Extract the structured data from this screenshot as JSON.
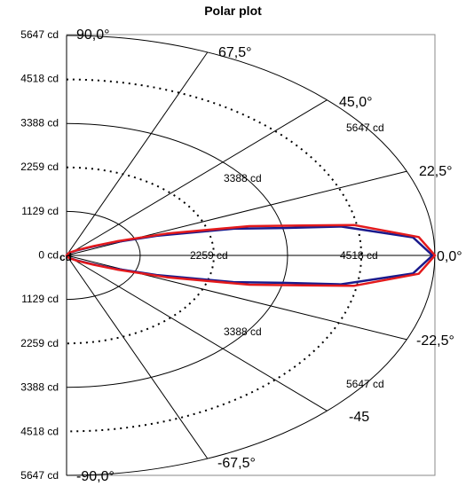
{
  "chart_data": {
    "type": "polar",
    "title": "Polar plot",
    "r_max": 5647,
    "r_unit": "cd",
    "radial_levels": [
      1129,
      2259,
      3388,
      4518,
      5647
    ],
    "y_tick_labels": [
      "5647 cd",
      "4518 cd",
      "3388 cd",
      "2259 cd",
      "1129 cd",
      "0 cd",
      "1129 cd",
      "2259 cd",
      "3388 cd",
      "4518 cd",
      "5647 cd"
    ],
    "angle_labels": [
      "90,0°",
      "67,5°",
      "45,0°",
      "22,5°",
      "0,0°",
      "-22,5°",
      "-45",
      "-67,5°",
      "-90,0°"
    ],
    "ring_labels": [
      {
        "text": "2259 cd"
      },
      {
        "text": "3388 cd"
      },
      {
        "text": "4518 cd"
      },
      {
        "text": "5647 cd"
      },
      {
        "text": "3388 cd"
      },
      {
        "text": "5647 cd"
      }
    ],
    "origin_label": "cd",
    "series": [
      {
        "color": "#1a1a8c",
        "points": [
          [
            0,
            5610
          ],
          [
            5,
            5330
          ],
          [
            10,
            4270
          ],
          [
            12,
            3388
          ],
          [
            15,
            2650
          ],
          [
            20,
            1470
          ],
          [
            25,
            780
          ],
          [
            30,
            430
          ],
          [
            40,
            200
          ],
          [
            60,
            70
          ],
          [
            90,
            0
          ]
        ]
      },
      {
        "color": "#e31a1c",
        "points": [
          [
            0,
            5647
          ],
          [
            5,
            5420
          ],
          [
            10,
            4480
          ],
          [
            12,
            3700
          ],
          [
            15,
            2900
          ],
          [
            20,
            1650
          ],
          [
            25,
            870
          ],
          [
            30,
            480
          ],
          [
            40,
            220
          ],
          [
            60,
            80
          ],
          [
            90,
            0
          ]
        ]
      }
    ]
  }
}
